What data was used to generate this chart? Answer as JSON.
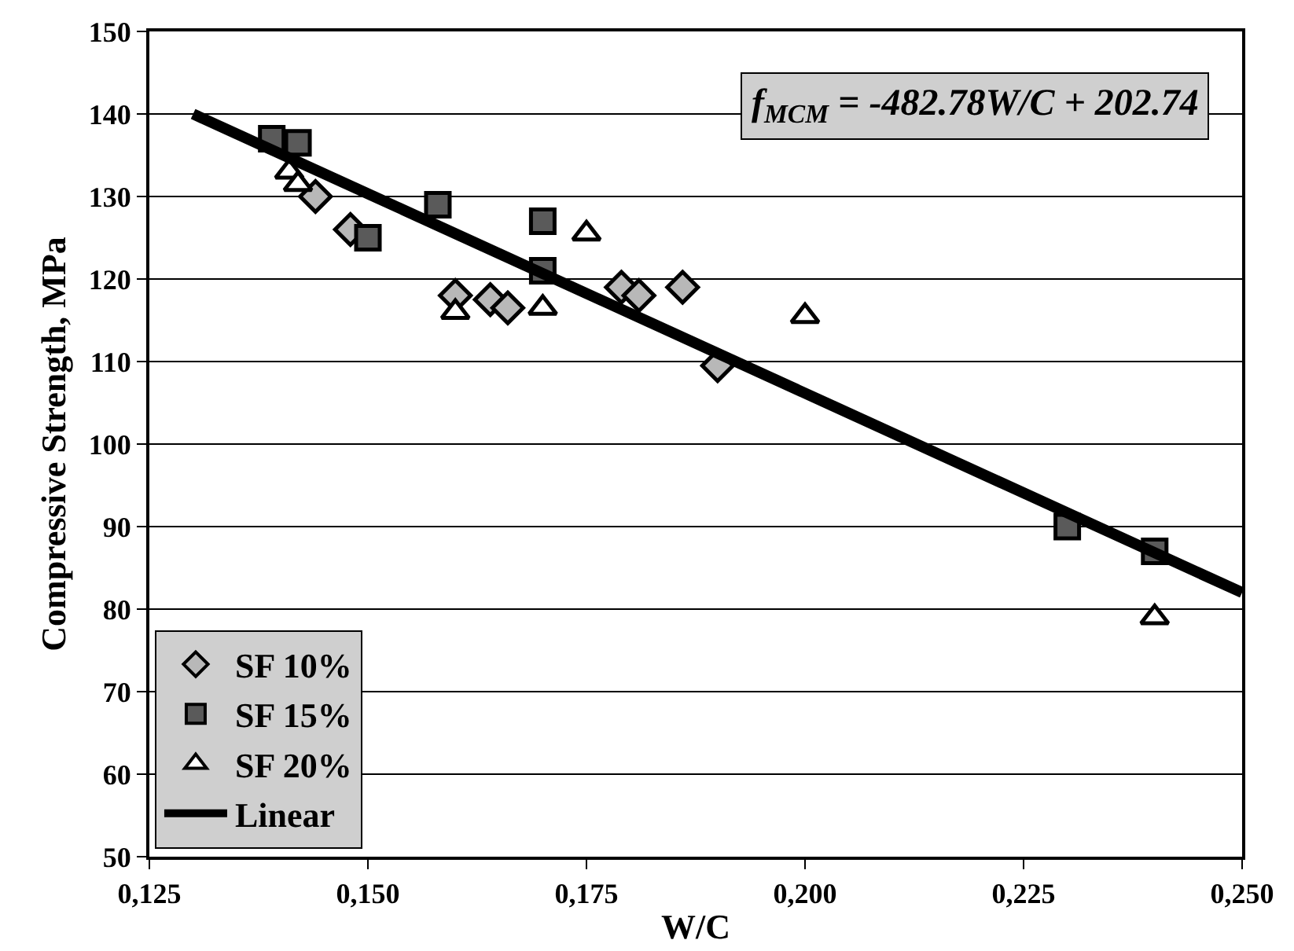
{
  "chart_data": {
    "type": "scatter",
    "xlabel": "W/C",
    "ylabel": "Compressive Strength, MPa",
    "xlim": [
      0.125,
      0.25
    ],
    "xticks": [
      {
        "value": 0.125,
        "label": "0,125"
      },
      {
        "value": 0.15,
        "label": "0,150"
      },
      {
        "value": 0.175,
        "label": "0,175"
      },
      {
        "value": 0.2,
        "label": "0,200"
      },
      {
        "value": 0.225,
        "label": "0,225"
      },
      {
        "value": 0.25,
        "label": "0,250"
      }
    ],
    "ylim": [
      50,
      150
    ],
    "yticks": [
      50,
      60,
      70,
      80,
      90,
      100,
      110,
      120,
      130,
      140,
      150
    ],
    "grid": "y",
    "legend": "bottom left",
    "annotations": [
      "f$_{MCM}$ = -482.78W/C + 202.74"
    ],
    "series": [
      {
        "name": "SF 10%",
        "marker": "diamond",
        "color": "#b8b8b8",
        "x": [
          0.144,
          0.148,
          0.16,
          0.164,
          0.166,
          0.179,
          0.181,
          0.186,
          0.19
        ],
        "values": [
          130,
          126,
          118,
          117.5,
          116.5,
          119,
          118,
          119,
          109.5
        ]
      },
      {
        "name": "SF 15%",
        "marker": "square",
        "color": "#5a5a5a",
        "x": [
          0.139,
          0.142,
          0.15,
          0.158,
          0.17,
          0.17,
          0.23,
          0.24
        ],
        "values": [
          137,
          136.5,
          125,
          129,
          127,
          121,
          90,
          87
        ]
      },
      {
        "name": "SF 20%",
        "marker": "triangle",
        "color": "#ffffff",
        "x": [
          0.141,
          0.142,
          0.16,
          0.17,
          0.175,
          0.2,
          0.24
        ],
        "values": [
          133,
          131.5,
          116,
          116.5,
          125.5,
          115.5,
          79
        ]
      },
      {
        "name": "Linear",
        "type": "line",
        "marker": "none",
        "color": "#000000",
        "x": [
          0.13,
          0.25
        ],
        "values": [
          140,
          82
        ]
      }
    ]
  }
}
